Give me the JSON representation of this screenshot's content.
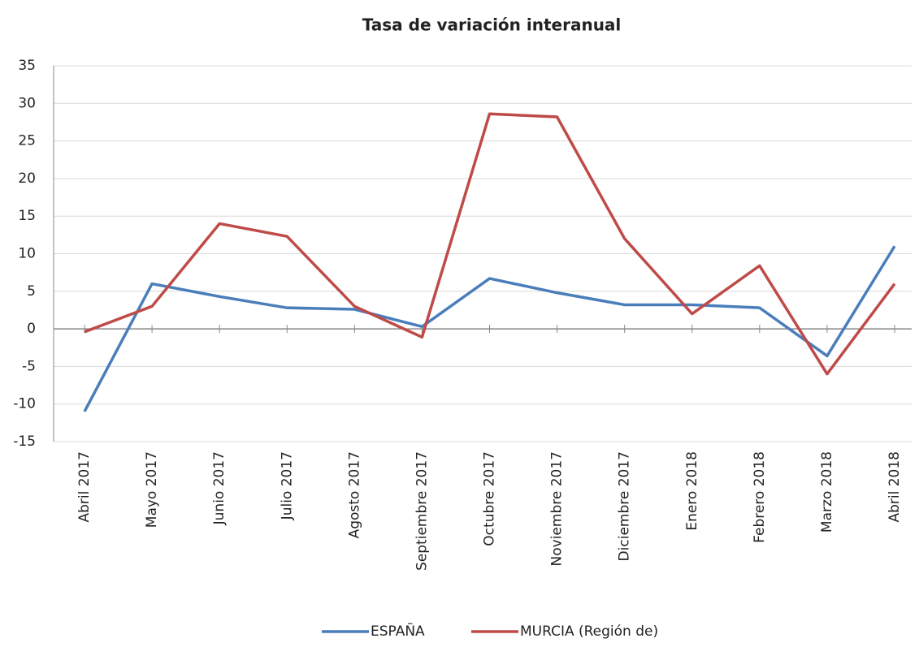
{
  "chart_data": {
    "type": "line",
    "title": "Tasa de variación interanual",
    "categories": [
      "Abril 2017",
      "Mayo 2017",
      "Junio 2017",
      "Julio 2017",
      "Agosto 2017",
      "Septiembre 2017",
      "Octubre 2017",
      "Noviembre 2017",
      "Diciembre 2017",
      "Enero 2018",
      "Febrero 2018",
      "Marzo 2018",
      "Abril 2018"
    ],
    "series": [
      {
        "name": "ESPAÑA",
        "color": "#4a7ebb",
        "values": [
          -11,
          6,
          4.3,
          2.8,
          2.6,
          0.3,
          6.7,
          4.8,
          3.2,
          3.2,
          2.8,
          -3.6,
          11
        ]
      },
      {
        "name": "MURCIA (Región de)",
        "color": "#be4b48",
        "values": [
          -0.4,
          3,
          14,
          12.3,
          3,
          -1.1,
          28.6,
          28.2,
          12,
          2,
          8.4,
          -6,
          6
        ]
      }
    ],
    "ylim": [
      -15,
      35
    ],
    "yticks": [
      -15,
      -10,
      -5,
      0,
      5,
      10,
      15,
      20,
      25,
      30,
      35
    ],
    "grid": true,
    "legend": "bottom"
  }
}
